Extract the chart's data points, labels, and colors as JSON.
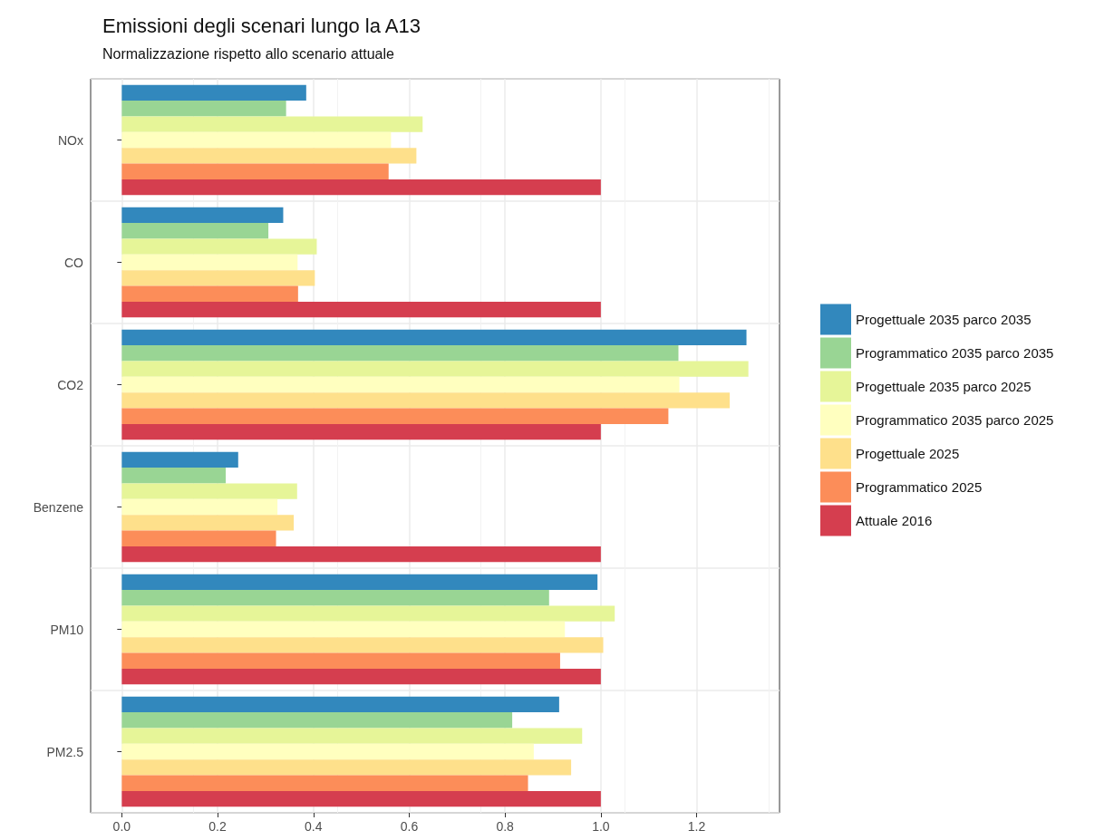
{
  "chart_data": {
    "type": "bar",
    "orientation": "horizontal",
    "title": "Emissioni degli scenari lungo la A13",
    "subtitle": "Normalizzazione rispetto allo scenario attuale",
    "categories": [
      "NOx",
      "CO",
      "CO2",
      "Benzene",
      "PM10",
      "PM2.5"
    ],
    "series": [
      {
        "name": "Progettuale 2035 parco 2035",
        "color": "#3288bd",
        "values": [
          0.385,
          0.337,
          1.304,
          0.243,
          0.993,
          0.913
        ]
      },
      {
        "name": "Programmatico 2035 parco 2035",
        "color": "#99d594",
        "values": [
          0.343,
          0.306,
          1.162,
          0.217,
          0.892,
          0.815
        ]
      },
      {
        "name": "Progettuale 2035 parco 2025",
        "color": "#e6f598",
        "values": [
          0.628,
          0.407,
          1.308,
          0.366,
          1.029,
          0.961
        ]
      },
      {
        "name": "Programmatico 2035 parco 2025",
        "color": "#ffffbf",
        "values": [
          0.562,
          0.367,
          1.164,
          0.325,
          0.925,
          0.86
        ]
      },
      {
        "name": "Progettuale 2025",
        "color": "#fee08b",
        "values": [
          0.615,
          0.403,
          1.269,
          0.359,
          1.005,
          0.938
        ]
      },
      {
        "name": "Programmatico 2025",
        "color": "#fc8d59",
        "values": [
          0.557,
          0.368,
          1.141,
          0.322,
          0.915,
          0.848
        ]
      },
      {
        "name": "Attuale 2016",
        "color": "#d53e4f",
        "values": [
          1,
          1,
          1,
          1,
          1,
          1
        ]
      }
    ],
    "xlim": [
      -0.065,
      1.373
    ],
    "xticks": [
      {
        "value": 0,
        "label": "0.0"
      },
      {
        "value": 0.2,
        "label": "0.2"
      },
      {
        "value": 0.4,
        "label": "0.4"
      },
      {
        "value": 0.6,
        "label": "0.6"
      },
      {
        "value": 0.8,
        "label": "0.8"
      },
      {
        "value": 1,
        "label": "1.0"
      },
      {
        "value": 1.2,
        "label": "1.2"
      }
    ],
    "grid": true,
    "legend": "right"
  }
}
